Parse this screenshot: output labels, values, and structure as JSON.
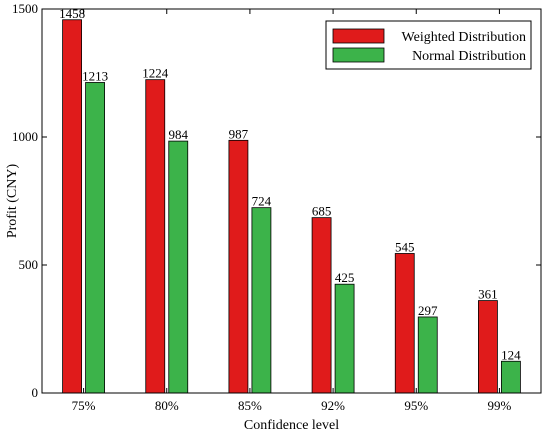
{
  "chart_data": {
    "type": "bar",
    "xlabel": "Confidence level",
    "ylabel": "Profit (CNY)",
    "ylim": [
      0,
      1500
    ],
    "yticks": [
      0,
      500,
      1000,
      1500
    ],
    "categories": [
      "75%",
      "80%",
      "85%",
      "92%",
      "95%",
      "99%"
    ],
    "series": [
      {
        "name": "Weighted Distribution",
        "color": "#e01b1b",
        "values": [
          1458,
          1224,
          987,
          685,
          545,
          361
        ]
      },
      {
        "name": "Normal Distribution",
        "color": "#3cb34a",
        "values": [
          1213,
          984,
          724,
          425,
          297,
          124
        ]
      }
    ],
    "legend_position": "top-right",
    "grid": false
  }
}
